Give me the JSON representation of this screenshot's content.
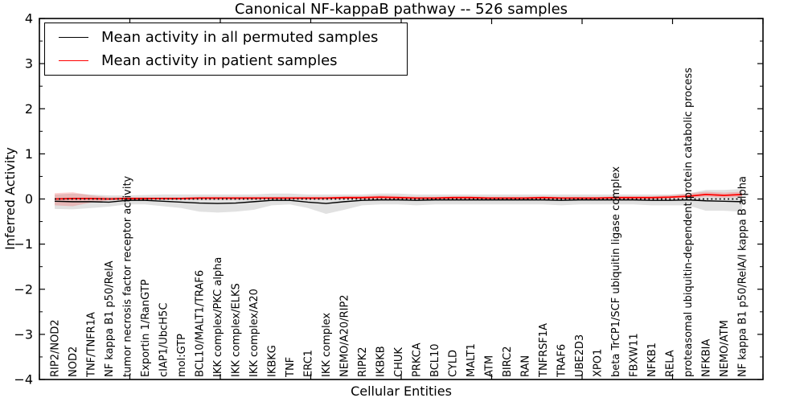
{
  "figure": {
    "title": "Canonical NF-kappaB pathway -- 526 samples",
    "xlabel": "Cellular Entities",
    "ylabel": "Inferred Activity"
  },
  "legend": {
    "entries": [
      {
        "label": "Mean activity in all permuted samples",
        "color": "#000000"
      },
      {
        "label": "Mean activity in patient samples",
        "color": "#ff0000"
      }
    ]
  },
  "chart_data": {
    "type": "line",
    "title": "Canonical NF-kappaB pathway -- 526 samples",
    "xlabel": "Cellular Entities",
    "ylabel": "Inferred Activity",
    "ylim": [
      -4,
      4
    ],
    "yticks": [
      -4,
      -3,
      -2,
      -1,
      0,
      1,
      2,
      3,
      4
    ],
    "ytick_labels": [
      "−4",
      "−3",
      "−2",
      "−1",
      "0",
      "1",
      "2",
      "3",
      "4"
    ],
    "grid": false,
    "legend_position": "upper left",
    "zero_line": {
      "y": 0,
      "style": "dotted",
      "color": "#000000"
    },
    "categories": [
      "RIP2/NOD2",
      "NOD2",
      "TNF/TNFR1A",
      "NF kappa B1 p50/RelA",
      "tumor necrosis factor receptor activity",
      "Exportin 1/RanGTP",
      "cIAP1/UbcH5C",
      "mol:GTP",
      "BCL10/MALT1/TRAF6",
      "IKK complex/PKC alpha",
      "IKK complex/ELKS",
      "IKK complex/A20",
      "IKBKG",
      "TNF",
      "ERC1",
      "IKK complex",
      "NEMO/A20/RIP2",
      "RIPK2",
      "IKBKB",
      "CHUK",
      "PRKCA",
      "BCL10",
      "CYLD",
      "MALT1",
      "ATM",
      "BIRC2",
      "RAN",
      "TNFRSF1A",
      "TRAF6",
      "UBE2D3",
      "XPO1",
      "beta TrCP1/SCF ubiquitin ligase complex",
      "FBXW11",
      "NFKB1",
      "RELA",
      "proteasomal ubiquitin-dependent protein catabolic process",
      "NFKBIA",
      "NEMO/ATM",
      "NF kappa B1 p50/RelA/I kappa B alpha"
    ],
    "series": [
      {
        "name": "Mean activity in all permuted samples",
        "color": "#000000",
        "values": [
          -0.05,
          -0.06,
          -0.06,
          -0.07,
          -0.03,
          -0.03,
          -0.05,
          -0.07,
          -0.09,
          -0.1,
          -0.09,
          -0.06,
          -0.03,
          -0.03,
          -0.07,
          -0.1,
          -0.06,
          -0.03,
          -0.02,
          -0.02,
          -0.03,
          -0.02,
          -0.02,
          -0.02,
          -0.02,
          -0.02,
          -0.02,
          -0.02,
          -0.03,
          -0.02,
          -0.02,
          -0.02,
          -0.02,
          -0.03,
          -0.03,
          -0.02,
          -0.04,
          -0.05,
          -0.06
        ]
      },
      {
        "name": "Mean activity in patient samples",
        "color": "#ff0000",
        "values": [
          0.0,
          0.01,
          0.01,
          0.0,
          0.01,
          0.01,
          0.01,
          0.01,
          0.02,
          0.02,
          0.02,
          0.02,
          0.02,
          0.02,
          0.02,
          0.02,
          0.03,
          0.03,
          0.04,
          0.03,
          0.02,
          0.02,
          0.03,
          0.03,
          0.02,
          0.02,
          0.02,
          0.03,
          0.02,
          0.02,
          0.02,
          0.03,
          0.03,
          0.03,
          0.04,
          0.06,
          0.1,
          0.08,
          0.1
        ]
      }
    ],
    "bands": [
      {
        "name": "permuted-samples-range",
        "color": "#e1e1e1",
        "upper": [
          0.1,
          0.12,
          0.1,
          0.08,
          0.08,
          0.09,
          0.1,
          0.1,
          0.1,
          0.1,
          0.1,
          0.1,
          0.12,
          0.12,
          0.1,
          0.1,
          0.1,
          0.1,
          0.12,
          0.12,
          0.1,
          0.1,
          0.1,
          0.1,
          0.1,
          0.1,
          0.1,
          0.1,
          0.1,
          0.1,
          0.1,
          0.1,
          0.1,
          0.1,
          0.1,
          0.12,
          0.2,
          0.2,
          0.22
        ],
        "lower": [
          -0.22,
          -0.23,
          -0.2,
          -0.17,
          -0.12,
          -0.12,
          -0.16,
          -0.2,
          -0.28,
          -0.3,
          -0.28,
          -0.24,
          -0.14,
          -0.12,
          -0.2,
          -0.33,
          -0.24,
          -0.14,
          -0.12,
          -0.12,
          -0.14,
          -0.12,
          -0.12,
          -0.12,
          -0.12,
          -0.12,
          -0.12,
          -0.12,
          -0.14,
          -0.12,
          -0.12,
          -0.12,
          -0.12,
          -0.14,
          -0.14,
          -0.14,
          -0.26,
          -0.26,
          -0.28
        ]
      },
      {
        "name": "patient-samples-range",
        "color": "rgba(255,0,0,0.18)",
        "upper": [
          0.13,
          0.15,
          0.08,
          0.04,
          0.04,
          0.04,
          0.04,
          0.04,
          0.05,
          0.05,
          0.05,
          0.05,
          0.05,
          0.05,
          0.05,
          0.05,
          0.06,
          0.06,
          0.08,
          0.07,
          0.05,
          0.05,
          0.06,
          0.06,
          0.05,
          0.05,
          0.05,
          0.06,
          0.05,
          0.05,
          0.05,
          0.06,
          0.06,
          0.06,
          0.08,
          0.12,
          0.16,
          0.14,
          0.16
        ],
        "lower": [
          -0.14,
          -0.16,
          -0.08,
          -0.03,
          -0.02,
          -0.02,
          -0.02,
          -0.02,
          -0.02,
          -0.02,
          -0.02,
          -0.02,
          -0.01,
          -0.01,
          -0.02,
          -0.02,
          -0.01,
          0.0,
          0.0,
          0.0,
          -0.01,
          -0.01,
          0.0,
          0.0,
          -0.01,
          -0.01,
          -0.01,
          0.0,
          -0.01,
          -0.01,
          -0.01,
          0.0,
          0.0,
          0.0,
          0.01,
          0.02,
          0.05,
          0.03,
          0.05
        ]
      }
    ]
  }
}
